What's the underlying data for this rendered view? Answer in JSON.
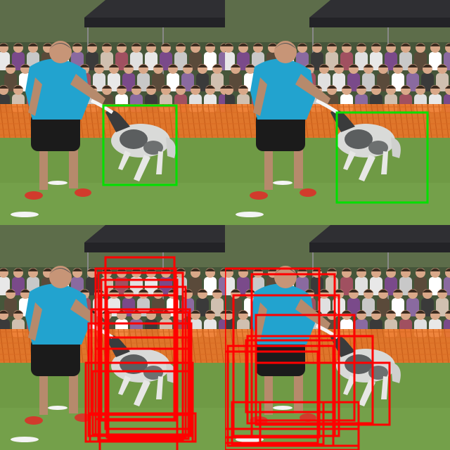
{
  "figure": {
    "panels": [
      {
        "id": "top-left",
        "box_color": "#00e000",
        "box_count": 1
      },
      {
        "id": "top-right",
        "box_color": "#00e000",
        "box_count": 1
      },
      {
        "id": "bottom-left",
        "box_color": "#ff0000",
        "box_count": 14
      },
      {
        "id": "bottom-right",
        "box_color": "#ff0000",
        "box_count": 12
      }
    ],
    "scene_colors": {
      "grass": "#6f9a45",
      "tent": "#2f2f33",
      "fence": "#f07a2a",
      "shirt": "#22a3cf",
      "shorts": "#1b1b1b",
      "dog_fur": "#d9dad8"
    }
  }
}
